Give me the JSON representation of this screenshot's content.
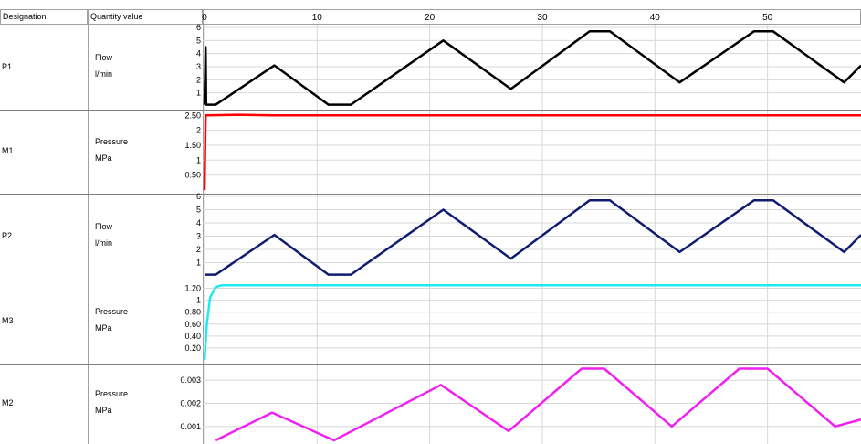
{
  "table": {
    "header_designation": "Designation",
    "header_quantity": "Quantity value"
  },
  "rows": [
    {
      "designation": "P1",
      "quantity": "Flow",
      "unit": "l/min",
      "color": "#000000",
      "ticks": [
        "6",
        "5",
        "4",
        "3",
        "2",
        "1"
      ],
      "tick_vals": [
        6,
        5,
        4,
        3,
        2,
        1
      ],
      "ymin": 0,
      "ymax": 6
    },
    {
      "designation": "M1",
      "quantity": "Pressure",
      "unit": "MPa",
      "color": "#ff0000",
      "ticks": [
        "2.50",
        "2",
        "1.50",
        "1",
        "0.50"
      ],
      "tick_vals": [
        2.5,
        2,
        1.5,
        1,
        0.5
      ],
      "ymin": 0,
      "ymax": 2.6
    },
    {
      "designation": "P2",
      "quantity": "Flow",
      "unit": "l/min",
      "color": "#101c70",
      "ticks": [
        "6",
        "5",
        "4",
        "3",
        "2",
        "1"
      ],
      "tick_vals": [
        6,
        5,
        4,
        3,
        2,
        1
      ],
      "ymin": 0,
      "ymax": 6
    },
    {
      "designation": "M3",
      "quantity": "Pressure",
      "unit": "MPa",
      "color": "#20e8f0",
      "ticks": [
        "1.20",
        "1",
        "0.80",
        "0.60",
        "0.40",
        "0.20"
      ],
      "tick_vals": [
        1.2,
        1,
        0.8,
        0.6,
        0.4,
        0.2
      ],
      "ymin": 0,
      "ymax": 1.3
    },
    {
      "designation": "M2",
      "quantity": "Pressure",
      "unit": "MPa",
      "color": "#f020f0",
      "ticks": [
        "0.003",
        "0.002",
        "0.001"
      ],
      "tick_vals": [
        0.003,
        0.002,
        0.001
      ],
      "ymin": 0.0004,
      "ymax": 0.0036
    }
  ],
  "chart_data": {
    "type": "line",
    "x_ticks": [
      "0",
      "10",
      "20",
      "30",
      "40",
      "50"
    ],
    "x_tick_vals": [
      0,
      10,
      20,
      30,
      40,
      50
    ],
    "xlim": [
      0,
      58.3
    ],
    "grid": true,
    "series": [
      {
        "name": "P1",
        "points": [
          [
            0,
            0.1
          ],
          [
            0.1,
            4.5
          ],
          [
            0.15,
            0.1
          ],
          [
            1,
            0.1
          ],
          [
            6.2,
            3.1
          ],
          [
            11,
            0.1
          ],
          [
            13,
            0.1
          ],
          [
            21.2,
            5
          ],
          [
            27.2,
            1.3
          ],
          [
            34.2,
            5.7
          ],
          [
            36,
            5.7
          ],
          [
            42.2,
            1.8
          ],
          [
            48.8,
            5.7
          ],
          [
            50.5,
            5.7
          ],
          [
            56.8,
            1.8
          ],
          [
            58.3,
            3.1
          ]
        ]
      },
      {
        "name": "M1",
        "points": [
          [
            0,
            0
          ],
          [
            0.1,
            2.5
          ],
          [
            3,
            2.52
          ],
          [
            6,
            2.5
          ],
          [
            58.3,
            2.5
          ]
        ]
      },
      {
        "name": "P2",
        "points": [
          [
            0,
            0.1
          ],
          [
            1,
            0.1
          ],
          [
            6.2,
            3.1
          ],
          [
            11,
            0.1
          ],
          [
            13,
            0.1
          ],
          [
            21.2,
            5
          ],
          [
            27.2,
            1.3
          ],
          [
            34.2,
            5.7
          ],
          [
            36,
            5.7
          ],
          [
            42.2,
            1.8
          ],
          [
            48.8,
            5.7
          ],
          [
            50.5,
            5.7
          ],
          [
            56.8,
            1.8
          ],
          [
            58.3,
            3.1
          ]
        ]
      },
      {
        "name": "M3",
        "points": [
          [
            0,
            0
          ],
          [
            0.2,
            0.6
          ],
          [
            0.5,
            1.05
          ],
          [
            1,
            1.22
          ],
          [
            1.5,
            1.25
          ],
          [
            58.3,
            1.25
          ]
        ]
      },
      {
        "name": "M2",
        "points": [
          [
            1,
            0.0004
          ],
          [
            6,
            0.0016
          ],
          [
            11.5,
            0.0004
          ],
          [
            21,
            0.0028
          ],
          [
            27,
            0.0008
          ],
          [
            33.5,
            0.0035
          ],
          [
            35.5,
            0.0035
          ],
          [
            41.5,
            0.001
          ],
          [
            47.5,
            0.0035
          ],
          [
            50,
            0.0035
          ],
          [
            56,
            0.001
          ],
          [
            58.3,
            0.0013
          ]
        ]
      }
    ]
  }
}
